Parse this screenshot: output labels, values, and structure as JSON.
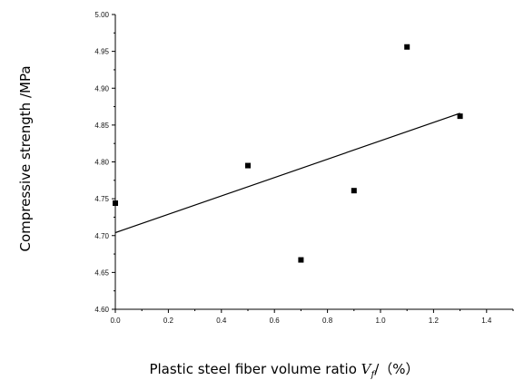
{
  "chart_data": {
    "type": "scatter",
    "title": "",
    "xlabel": "Plastic steel fiber volume ratio",
    "xlabel_symbol": "V",
    "xlabel_subscript": "f",
    "xlabel_suffix": "/（%）",
    "ylabel": "Compressive strength /MPa",
    "xlim": [
      0.0,
      1.5
    ],
    "ylim": [
      4.6,
      5.0
    ],
    "x_ticks": [
      "0.0",
      "0.2",
      "0.4",
      "0.6",
      "0.8",
      "1.0",
      "1.2",
      "1.4"
    ],
    "y_ticks": [
      "4.60",
      "4.65",
      "4.70",
      "4.75",
      "4.80",
      "4.85",
      "4.90",
      "4.95",
      "5.00"
    ],
    "series": [
      {
        "points": [
          {
            "x": 0.0,
            "y": 4.744
          },
          {
            "x": 0.5,
            "y": 4.795
          },
          {
            "x": 0.7,
            "y": 4.667
          },
          {
            "x": 0.9,
            "y": 4.761
          },
          {
            "x": 1.1,
            "y": 4.956
          },
          {
            "x": 1.3,
            "y": 4.862
          }
        ]
      }
    ],
    "fit_line": {
      "x": [
        0.0,
        1.3
      ],
      "y": [
        4.704,
        4.866
      ]
    },
    "grid": false,
    "legend": "none",
    "marker": "square",
    "color": "#000000"
  }
}
